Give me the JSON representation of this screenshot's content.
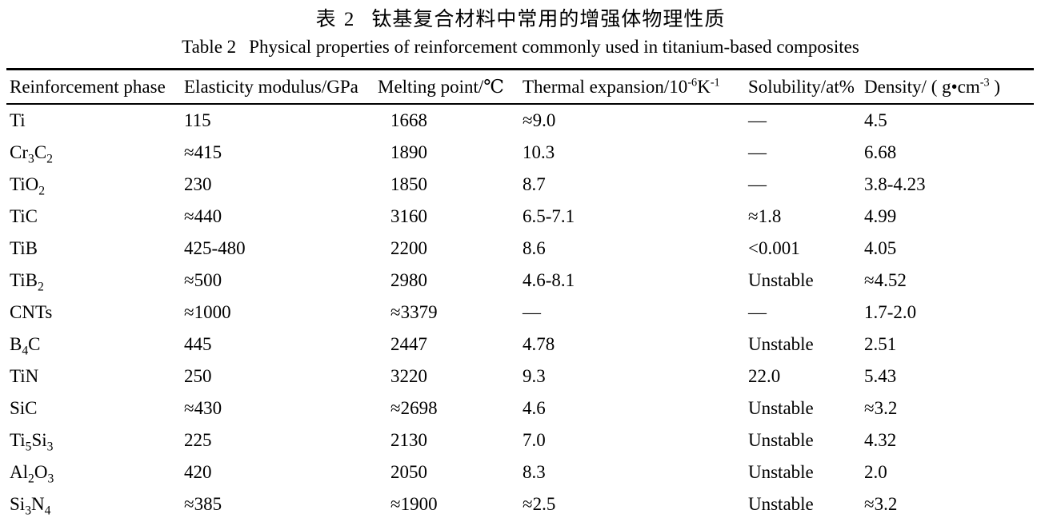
{
  "captions": {
    "zh_label": "表 2",
    "zh_text": "钛基复合材料中常用的增强体物理性质",
    "en_label": "Table 2",
    "en_text": "Physical properties of reinforcement commonly used in titanium-based composites"
  },
  "table": {
    "columns": [
      "Reinforcement phase",
      "Elasticity modulus/GPa",
      "Melting point/℃",
      "Thermal expansion/10⁻⁶K⁻¹",
      "Solubility/at%",
      "Density/ ( g•cm⁻³ )"
    ],
    "rows": [
      [
        "Ti",
        "115",
        "1668",
        "≈9.0",
        "—",
        "4.5"
      ],
      [
        "Cr₃C₂",
        "≈415",
        "1890",
        "10.3",
        "—",
        "6.68"
      ],
      [
        "TiO₂",
        "230",
        "1850",
        "8.7",
        "—",
        "3.8-4.23"
      ],
      [
        "TiC",
        "≈440",
        "3160",
        "6.5-7.1",
        "≈1.8",
        "4.99"
      ],
      [
        "TiB",
        "425-480",
        "2200",
        "8.6",
        "<0.001",
        "4.05"
      ],
      [
        "TiB₂",
        "≈500",
        "2980",
        "4.6-8.1",
        "Unstable",
        "≈4.52"
      ],
      [
        "CNTs",
        "≈1000",
        "≈3379",
        "—",
        "—",
        "1.7-2.0"
      ],
      [
        "B₄C",
        "445",
        "2447",
        "4.78",
        "Unstable",
        "2.51"
      ],
      [
        "TiN",
        "250",
        "3220",
        "9.3",
        "22.0",
        "5.43"
      ],
      [
        "SiC",
        "≈430",
        "≈2698",
        "4.6",
        "Unstable",
        "≈3.2"
      ],
      [
        "Ti₅Si₃",
        "225",
        "2130",
        "7.0",
        "Unstable",
        "4.32"
      ],
      [
        "Al₂O₃",
        "420",
        "2050",
        "8.3",
        "Unstable",
        "2.0"
      ],
      [
        "Si₃N₄",
        "≈385",
        "≈1900",
        "≈2.5",
        "Unstable",
        "≈3.2"
      ]
    ],
    "colors": {
      "text": "#000000",
      "background": "#ffffff",
      "rule": "#000000"
    }
  }
}
